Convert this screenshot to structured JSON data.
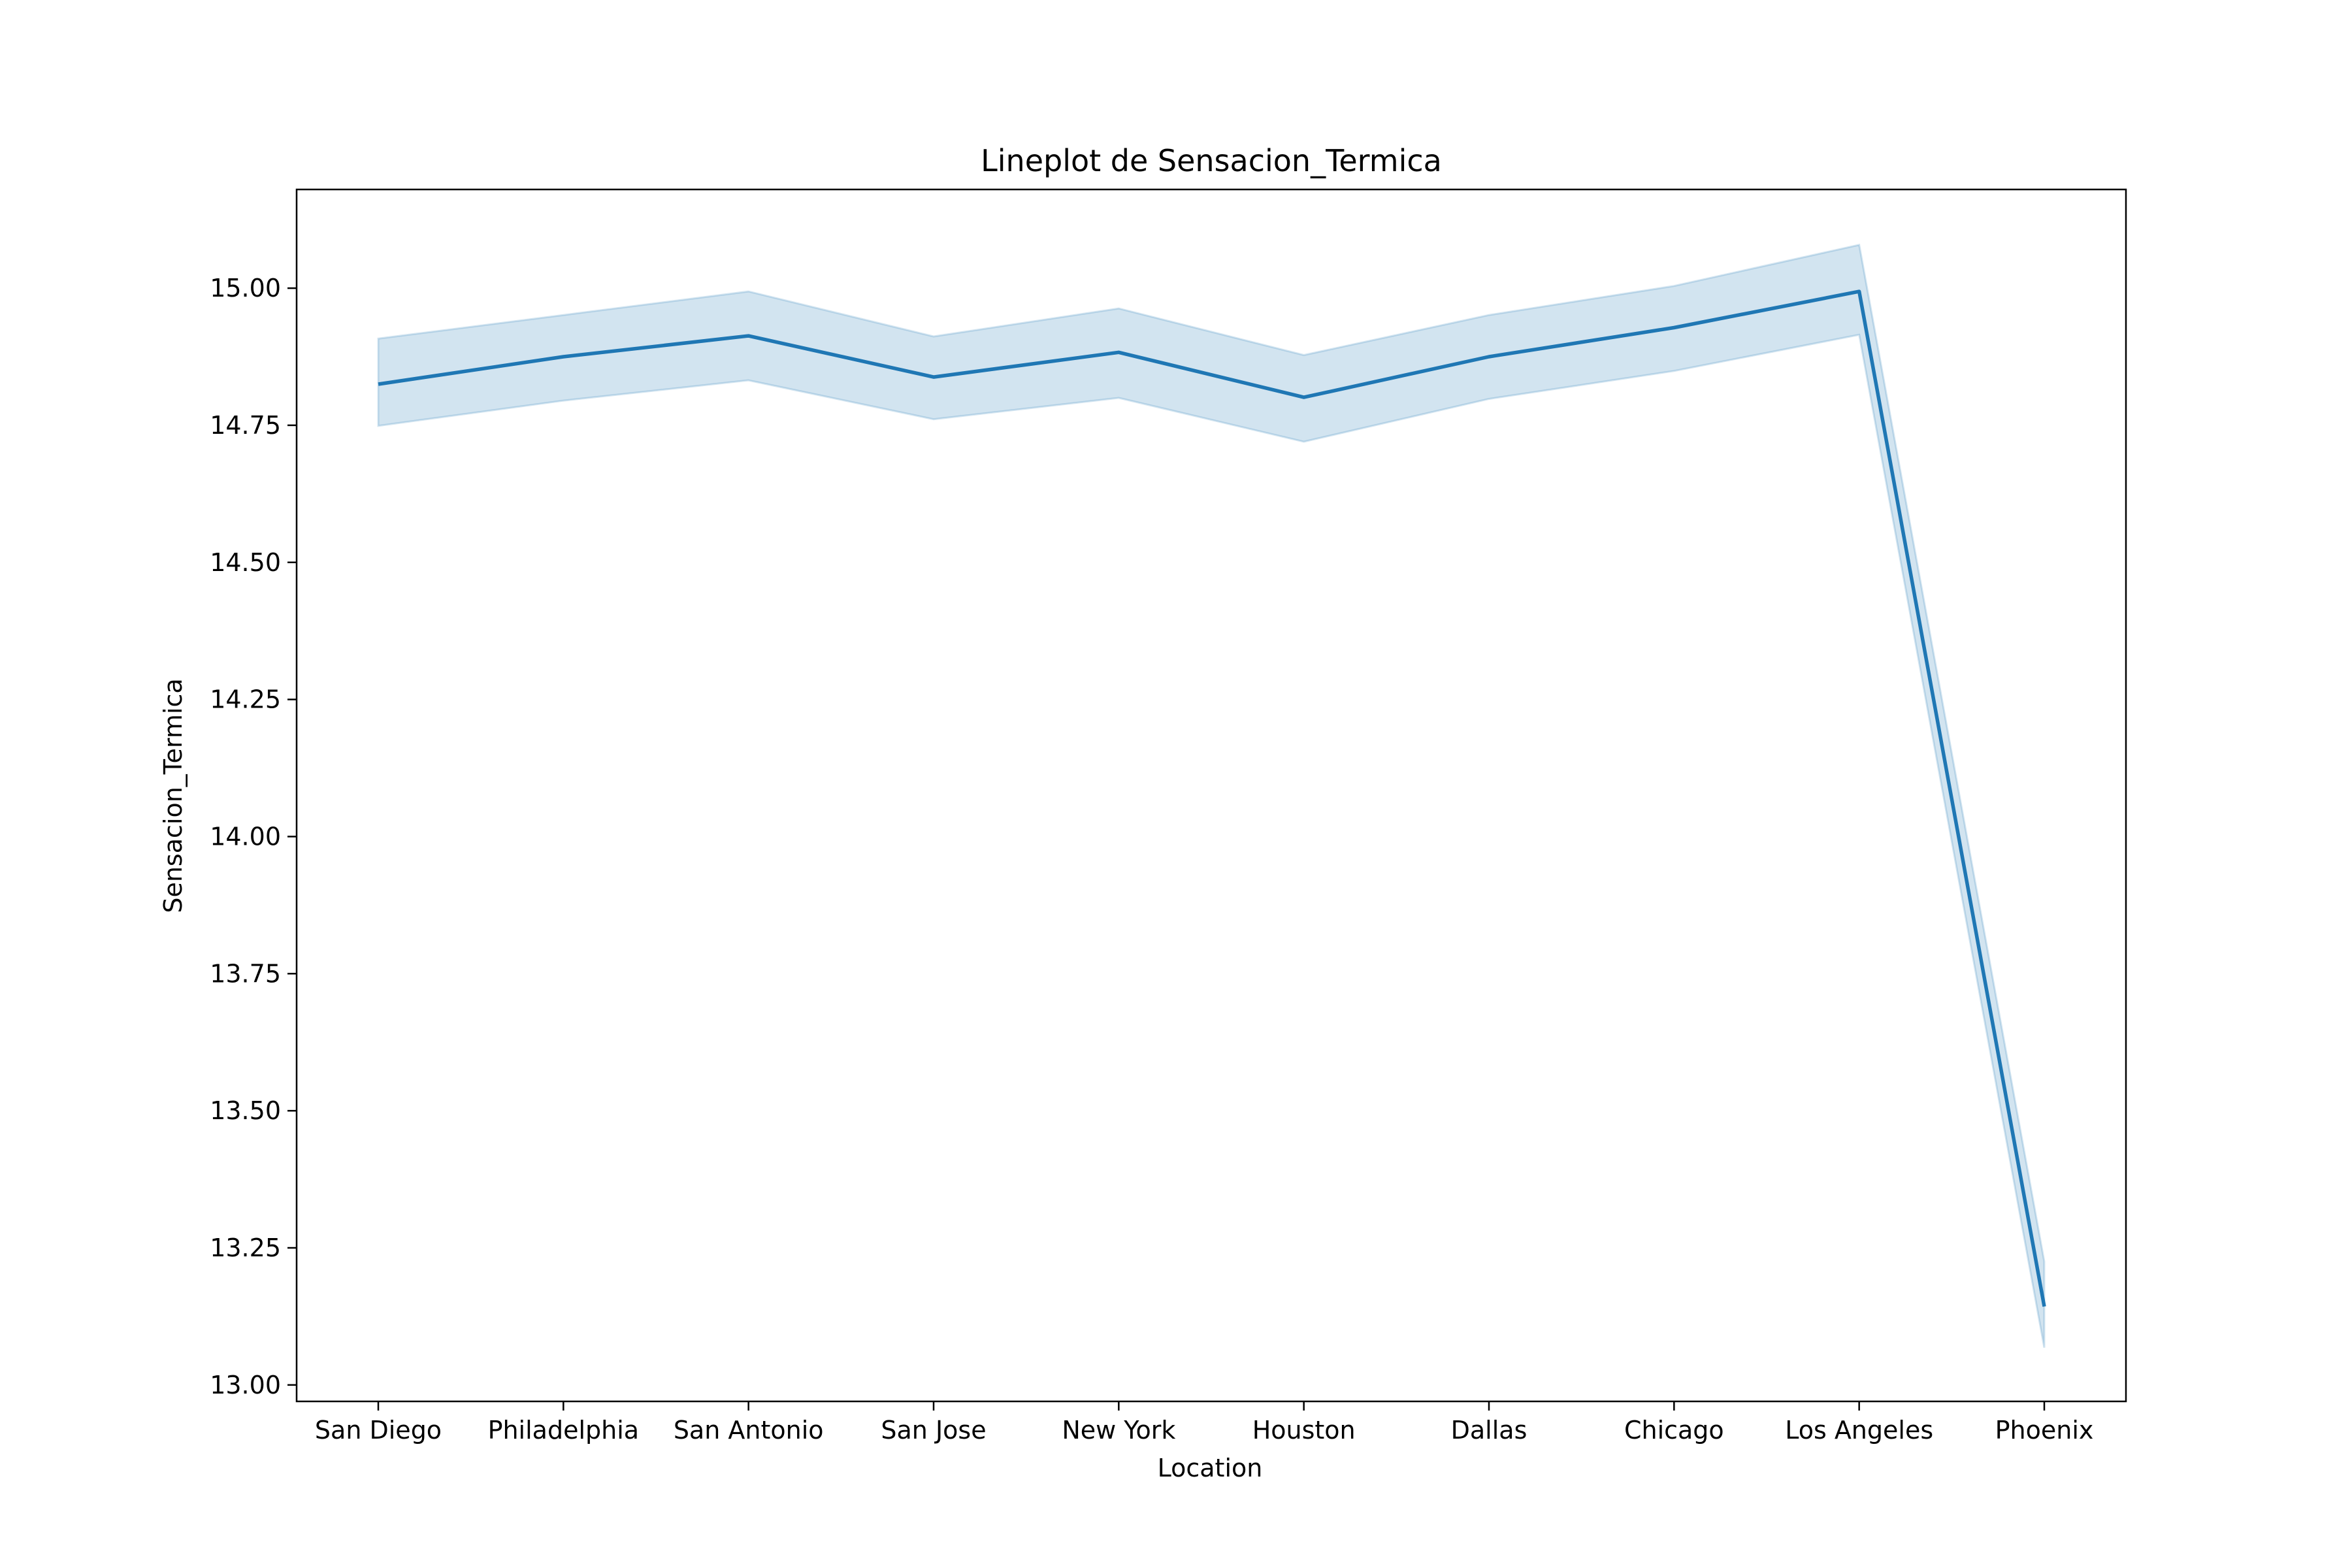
{
  "chart_data": {
    "type": "line",
    "title": "Lineplot de Sensacion_Termica",
    "xlabel": "Location",
    "ylabel": "Sensacion_Termica",
    "categories": [
      "San Diego",
      "Philadelphia",
      "San Antonio",
      "San Jose",
      "New York",
      "Houston",
      "Dallas",
      "Chicago",
      "Los Angeles",
      "Phoenix"
    ],
    "series": [
      {
        "values": [
          14.825,
          14.875,
          14.913,
          14.838,
          14.883,
          14.801,
          14.875,
          14.928,
          14.994,
          13.143
        ],
        "ci_lower": [
          14.749,
          14.795,
          14.832,
          14.761,
          14.8,
          14.72,
          14.798,
          14.849,
          14.915,
          13.068
        ],
        "ci_upper": [
          14.908,
          14.951,
          14.994,
          14.912,
          14.963,
          14.878,
          14.951,
          15.004,
          15.079,
          13.225
        ]
      }
    ],
    "ylim": [
      12.97,
      15.18
    ],
    "yticks": [
      13.0,
      13.25,
      13.5,
      13.75,
      14.0,
      14.25,
      14.5,
      14.75,
      15.0
    ],
    "grid": false,
    "line_color": "#1f77b4",
    "band_color": "#1f77b4"
  }
}
